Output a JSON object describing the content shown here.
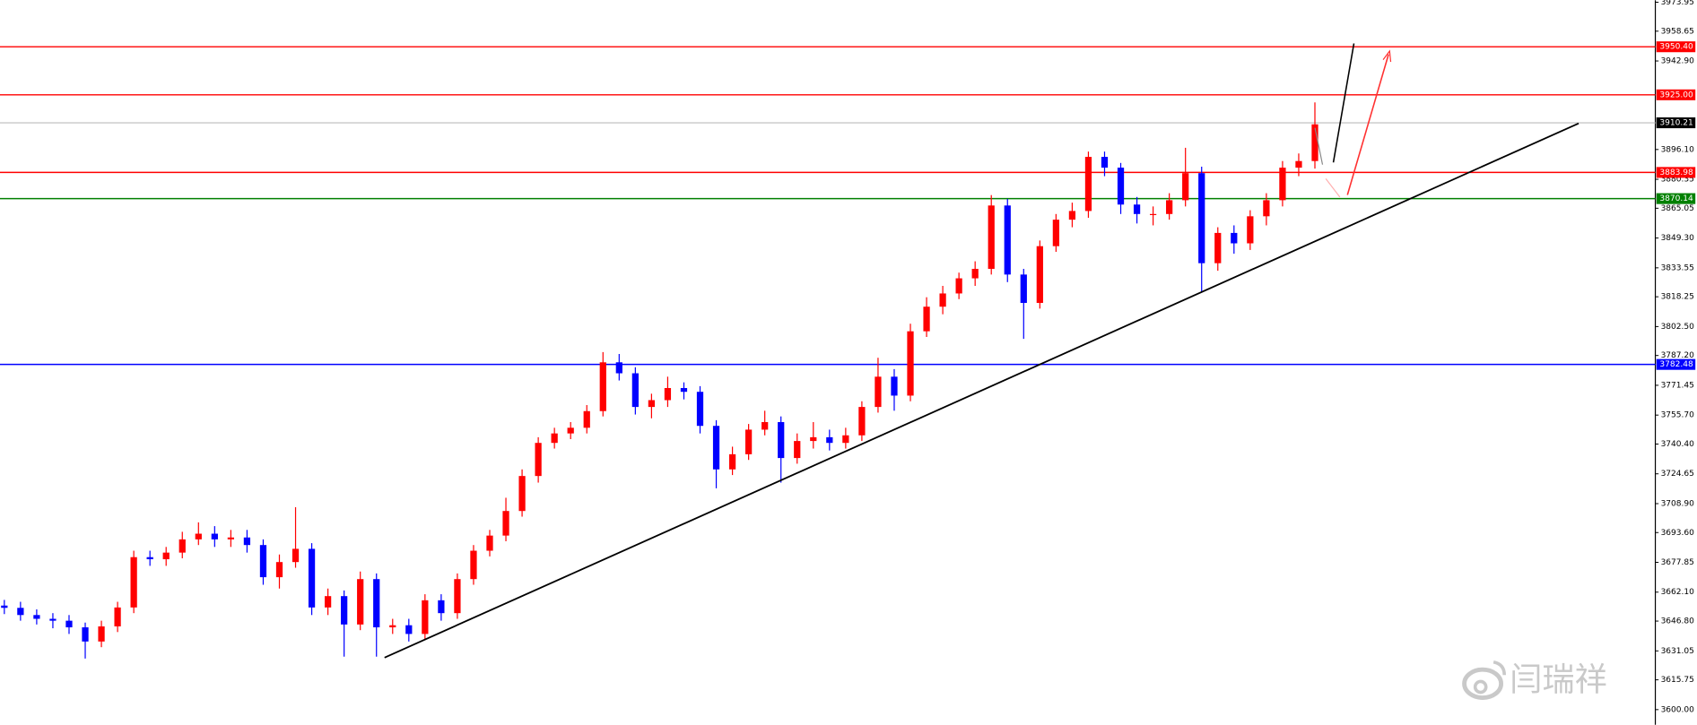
{
  "chart_data": {
    "type": "candlestick",
    "up_color": "#ff0000",
    "down_color": "#0000ff",
    "ylim": [
      3592,
      3975
    ],
    "yticks": [
      {
        "value": 3973.95,
        "label": "3973.95"
      },
      {
        "value": 3958.65,
        "label": "3958.65"
      },
      {
        "value": 3942.9,
        "label": "3942.90"
      },
      {
        "value": 3896.1,
        "label": "3896.10"
      },
      {
        "value": 3880.35,
        "label": "3880.35"
      },
      {
        "value": 3865.05,
        "label": "3865.05"
      },
      {
        "value": 3849.3,
        "label": "3849.30"
      },
      {
        "value": 3833.55,
        "label": "3833.55"
      },
      {
        "value": 3818.25,
        "label": "3818.25"
      },
      {
        "value": 3802.5,
        "label": "3802.50"
      },
      {
        "value": 3787.2,
        "label": "3787.20"
      },
      {
        "value": 3771.45,
        "label": "3771.45"
      },
      {
        "value": 3755.7,
        "label": "3755.70"
      },
      {
        "value": 3740.4,
        "label": "3740.40"
      },
      {
        "value": 3724.65,
        "label": "3724.65"
      },
      {
        "value": 3708.9,
        "label": "3708.90"
      },
      {
        "value": 3693.6,
        "label": "3693.60"
      },
      {
        "value": 3677.85,
        "label": "3677.85"
      },
      {
        "value": 3662.1,
        "label": "3662.10"
      },
      {
        "value": 3646.8,
        "label": "3646.80"
      },
      {
        "value": 3631.05,
        "label": "3631.05"
      },
      {
        "value": 3615.75,
        "label": "3615.75"
      },
      {
        "value": 3600,
        "label": "3600.00"
      }
    ],
    "levels": [
      {
        "value": 3950.4,
        "label": "3950.40",
        "color": "#ff0000",
        "text_color": "#ffffff"
      },
      {
        "value": 3925,
        "label": "3925.00",
        "color": "#ff0000",
        "text_color": "#ffffff"
      },
      {
        "value": 3910.21,
        "label": "3910.21",
        "color": "#c8c8c8",
        "box_color": "#000000",
        "text_color": "#ffffff"
      },
      {
        "value": 3883.98,
        "label": "3883.98",
        "color": "#ff0000",
        "text_color": "#ffffff"
      },
      {
        "value": 3870.14,
        "label": "3870.14",
        "color": "#008000",
        "text_color": "#ffffff"
      },
      {
        "value": 3782.48,
        "label": "3782.48",
        "color": "#0000ff",
        "text_color": "#ffffff"
      }
    ],
    "trendline": {
      "x": [
        23.5,
        97.3
      ],
      "y": [
        3627.5,
        3909.9
      ],
      "color": "#000000"
    },
    "candles": [
      [
        3655,
        3658,
        3650.5,
        3653.8
      ],
      [
        3653.8,
        3657,
        3647,
        3650
      ],
      [
        3650,
        3653,
        3645,
        3648
      ],
      [
        3648,
        3651,
        3643,
        3647
      ],
      [
        3647,
        3650,
        3640,
        3643.5
      ],
      [
        3643.5,
        3646,
        3627,
        3636
      ],
      [
        3636,
        3647,
        3633,
        3644
      ],
      [
        3644,
        3657,
        3641,
        3654
      ],
      [
        3654,
        3684,
        3651,
        3680.6
      ],
      [
        3680.6,
        3684,
        3676,
        3679.5
      ],
      [
        3679.5,
        3686,
        3676,
        3683
      ],
      [
        3683,
        3694,
        3680,
        3690
      ],
      [
        3690,
        3699,
        3687,
        3693
      ],
      [
        3693,
        3697,
        3686,
        3690
      ],
      [
        3690,
        3695,
        3686,
        3691
      ],
      [
        3691,
        3695,
        3683,
        3687
      ],
      [
        3687,
        3690,
        3666,
        3670
      ],
      [
        3670,
        3682,
        3664,
        3678
      ],
      [
        3678,
        3707,
        3675,
        3685
      ],
      [
        3685,
        3688,
        3650,
        3654
      ],
      [
        3654,
        3664,
        3650,
        3660
      ],
      [
        3660,
        3663,
        3628,
        3645
      ],
      [
        3645,
        3673,
        3642,
        3669
      ],
      [
        3669,
        3672,
        3628,
        3643.5
      ],
      [
        3643.5,
        3648,
        3640,
        3644.6
      ],
      [
        3644.6,
        3648,
        3636,
        3640
      ],
      [
        3640,
        3661,
        3637,
        3657.8
      ],
      [
        3657.8,
        3661,
        3647,
        3651
      ],
      [
        3651,
        3672,
        3648,
        3669
      ],
      [
        3669,
        3687,
        3666,
        3684
      ],
      [
        3684,
        3695,
        3681,
        3692
      ],
      [
        3692,
        3712,
        3689,
        3705
      ],
      [
        3705,
        3727,
        3702,
        3723.5
      ],
      [
        3723.5,
        3744,
        3720,
        3741
      ],
      [
        3741,
        3749,
        3738,
        3746
      ],
      [
        3746,
        3752,
        3743,
        3749
      ],
      [
        3749,
        3761,
        3746,
        3757.8
      ],
      [
        3757.8,
        3789,
        3755,
        3783.6
      ],
      [
        3783.6,
        3788,
        3774,
        3777.8
      ],
      [
        3777.8,
        3781,
        3756,
        3760
      ],
      [
        3760,
        3767,
        3754,
        3763.6
      ],
      [
        3763.6,
        3776,
        3760,
        3770
      ],
      [
        3770,
        3773,
        3764,
        3768
      ],
      [
        3768,
        3771,
        3746,
        3750
      ],
      [
        3750,
        3753,
        3717,
        3727
      ],
      [
        3727,
        3739,
        3724,
        3735
      ],
      [
        3735,
        3751,
        3732,
        3748
      ],
      [
        3748,
        3758,
        3745,
        3752
      ],
      [
        3752,
        3755,
        3720,
        3733
      ],
      [
        3733,
        3746,
        3730,
        3742
      ],
      [
        3742,
        3752,
        3738,
        3744
      ],
      [
        3744,
        3748,
        3737,
        3741
      ],
      [
        3741,
        3749,
        3738,
        3745
      ],
      [
        3745,
        3763,
        3742,
        3760
      ],
      [
        3760,
        3786,
        3757,
        3776
      ],
      [
        3776,
        3780,
        3758,
        3766
      ],
      [
        3766,
        3804,
        3763,
        3800
      ],
      [
        3800,
        3818,
        3797,
        3813
      ],
      [
        3813,
        3824,
        3809,
        3820
      ],
      [
        3820,
        3831,
        3817,
        3828
      ],
      [
        3828,
        3837,
        3824,
        3833
      ],
      [
        3833,
        3872,
        3830,
        3866.5
      ],
      [
        3866.5,
        3870,
        3826,
        3830
      ],
      [
        3830,
        3833,
        3796,
        3815
      ],
      [
        3815,
        3848,
        3812,
        3845
      ],
      [
        3845,
        3862,
        3842,
        3859
      ],
      [
        3859,
        3868,
        3855,
        3863.6
      ],
      [
        3863.6,
        3895,
        3860,
        3892.2
      ],
      [
        3892.2,
        3895,
        3882,
        3886.5
      ],
      [
        3886.5,
        3889,
        3862,
        3867
      ],
      [
        3867,
        3871,
        3857,
        3862
      ],
      [
        3862,
        3866,
        3856,
        3862
      ],
      [
        3862,
        3873,
        3859,
        3869.3
      ],
      [
        3869.3,
        3897,
        3866,
        3883.6
      ],
      [
        3883.6,
        3887,
        3821,
        3836
      ],
      [
        3836,
        3855,
        3832,
        3852
      ],
      [
        3852,
        3856,
        3841,
        3846.5
      ],
      [
        3846.5,
        3864,
        3843,
        3860.8
      ],
      [
        3860.8,
        3873,
        3856,
        3869.3
      ],
      [
        3869.3,
        3890,
        3866,
        3886.5
      ],
      [
        3886.5,
        3894,
        3882,
        3890
      ],
      [
        3890,
        3921,
        3886,
        3909.4
      ]
    ],
    "watermark": "闫瑞祥"
  }
}
